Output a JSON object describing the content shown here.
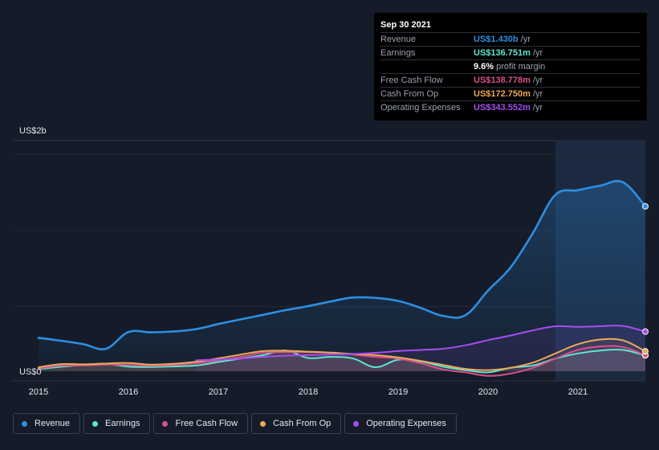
{
  "tooltip": {
    "date": "Sep 30 2021",
    "rows": [
      {
        "label": "Revenue",
        "value": "US$1.430b",
        "unit": "/yr",
        "color": "#2d8fe3"
      },
      {
        "label": "Earnings",
        "value": "US$136.751m",
        "unit": "/yr",
        "color": "#5ee6d2"
      },
      {
        "label": "",
        "value": "9.6%",
        "unit": "profit margin",
        "color": "#ffffff"
      },
      {
        "label": "Free Cash Flow",
        "value": "US$138.778m",
        "unit": "/yr",
        "color": "#d6508c"
      },
      {
        "label": "Cash From Op",
        "value": "US$172.750m",
        "unit": "/yr",
        "color": "#e9a95a"
      },
      {
        "label": "Operating Expenses",
        "value": "US$343.552m",
        "unit": "/yr",
        "color": "#a64df0"
      }
    ]
  },
  "legend": [
    {
      "label": "Revenue",
      "color": "#2d8fe3"
    },
    {
      "label": "Earnings",
      "color": "#5ee6d2"
    },
    {
      "label": "Free Cash Flow",
      "color": "#d6508c"
    },
    {
      "label": "Cash From Op",
      "color": "#e9a95a"
    },
    {
      "label": "Operating Expenses",
      "color": "#a64df0"
    }
  ],
  "chart_data": {
    "type": "area",
    "ylabel_top": "US$2b",
    "ylabel_bottom": "US$0",
    "ylim": [
      0,
      2000
    ],
    "xlim": [
      2015.0,
      2021.75
    ],
    "x_ticks": [
      "2015",
      "2016",
      "2017",
      "2018",
      "2019",
      "2020",
      "2021"
    ],
    "highlight_from": 2020.75,
    "series": [
      {
        "name": "Revenue",
        "color": "#2d8fe3",
        "points": [
          [
            2015.0,
            290
          ],
          [
            2015.25,
            265
          ],
          [
            2015.5,
            235
          ],
          [
            2015.75,
            195
          ],
          [
            2016.0,
            340
          ],
          [
            2016.25,
            337
          ],
          [
            2016.5,
            345
          ],
          [
            2016.75,
            365
          ],
          [
            2017.0,
            410
          ],
          [
            2017.25,
            450
          ],
          [
            2017.5,
            490
          ],
          [
            2017.75,
            530
          ],
          [
            2018.0,
            565
          ],
          [
            2018.25,
            605
          ],
          [
            2018.5,
            640
          ],
          [
            2018.75,
            636
          ],
          [
            2019.0,
            610
          ],
          [
            2019.25,
            550
          ],
          [
            2019.5,
            480
          ],
          [
            2019.75,
            487
          ],
          [
            2020.0,
            700
          ],
          [
            2020.25,
            900
          ],
          [
            2020.5,
            1200
          ],
          [
            2020.75,
            1530
          ],
          [
            2021.0,
            1570
          ],
          [
            2021.25,
            1610
          ],
          [
            2021.5,
            1640
          ],
          [
            2021.75,
            1430
          ]
        ]
      },
      {
        "name": "Earnings",
        "color": "#5ee6d2",
        "points": [
          [
            2015.0,
            20
          ],
          [
            2015.25,
            38
          ],
          [
            2015.5,
            55
          ],
          [
            2015.75,
            65
          ],
          [
            2016.0,
            40
          ],
          [
            2016.25,
            37
          ],
          [
            2016.5,
            42
          ],
          [
            2016.75,
            50
          ],
          [
            2017.0,
            80
          ],
          [
            2017.25,
            110
          ],
          [
            2017.5,
            140
          ],
          [
            2017.75,
            180
          ],
          [
            2018.0,
            115
          ],
          [
            2018.25,
            125
          ],
          [
            2018.5,
            110
          ],
          [
            2018.75,
            35
          ],
          [
            2019.0,
            100
          ],
          [
            2019.25,
            85
          ],
          [
            2019.5,
            40
          ],
          [
            2019.75,
            10
          ],
          [
            2020.0,
            -10
          ],
          [
            2020.25,
            30
          ],
          [
            2020.5,
            50
          ],
          [
            2020.75,
            110
          ],
          [
            2021.0,
            155
          ],
          [
            2021.25,
            180
          ],
          [
            2021.5,
            185
          ],
          [
            2021.75,
            137
          ]
        ]
      },
      {
        "name": "Free Cash Flow",
        "color": "#d6508c",
        "points": [
          [
            2015.0,
            25
          ],
          [
            2015.25,
            48
          ],
          [
            2015.5,
            50
          ],
          [
            2015.75,
            58
          ],
          [
            2016.0,
            55
          ],
          [
            2016.25,
            48
          ],
          [
            2016.5,
            55
          ],
          [
            2016.75,
            70
          ],
          [
            2017.0,
            95
          ],
          [
            2017.25,
            125
          ],
          [
            2017.5,
            160
          ],
          [
            2017.75,
            165
          ],
          [
            2018.0,
            165
          ],
          [
            2018.25,
            158
          ],
          [
            2018.5,
            145
          ],
          [
            2018.75,
            125
          ],
          [
            2019.0,
            110
          ],
          [
            2019.25,
            70
          ],
          [
            2019.5,
            15
          ],
          [
            2019.75,
            -10
          ],
          [
            2020.0,
            -40
          ],
          [
            2020.25,
            -20
          ],
          [
            2020.5,
            30
          ],
          [
            2020.75,
            110
          ],
          [
            2021.0,
            185
          ],
          [
            2021.25,
            215
          ],
          [
            2021.5,
            210
          ],
          [
            2021.75,
            139
          ]
        ]
      },
      {
        "name": "Cash From Op",
        "color": "#e9a95a",
        "points": [
          [
            2015.0,
            35
          ],
          [
            2015.25,
            62
          ],
          [
            2015.5,
            60
          ],
          [
            2015.75,
            67
          ],
          [
            2016.0,
            72
          ],
          [
            2016.25,
            58
          ],
          [
            2016.5,
            65
          ],
          [
            2016.75,
            82
          ],
          [
            2017.0,
            112
          ],
          [
            2017.25,
            145
          ],
          [
            2017.5,
            175
          ],
          [
            2017.75,
            178
          ],
          [
            2018.0,
            170
          ],
          [
            2018.25,
            162
          ],
          [
            2018.5,
            150
          ],
          [
            2018.75,
            140
          ],
          [
            2019.0,
            120
          ],
          [
            2019.25,
            90
          ],
          [
            2019.5,
            55
          ],
          [
            2019.75,
            20
          ],
          [
            2020.0,
            10
          ],
          [
            2020.25,
            30
          ],
          [
            2020.5,
            75
          ],
          [
            2020.75,
            155
          ],
          [
            2021.0,
            235
          ],
          [
            2021.25,
            275
          ],
          [
            2021.5,
            268
          ],
          [
            2021.75,
            173
          ]
        ]
      },
      {
        "name": "Operating Expenses",
        "color": "#a64df0",
        "points": [
          [
            2016.75,
            95
          ],
          [
            2017.0,
            102
          ],
          [
            2017.25,
            110
          ],
          [
            2017.5,
            125
          ],
          [
            2017.75,
            135
          ],
          [
            2018.0,
            140
          ],
          [
            2018.25,
            145
          ],
          [
            2018.5,
            150
          ],
          [
            2018.75,
            160
          ],
          [
            2019.0,
            175
          ],
          [
            2019.25,
            185
          ],
          [
            2019.5,
            195
          ],
          [
            2019.75,
            225
          ],
          [
            2020.0,
            270
          ],
          [
            2020.25,
            310
          ],
          [
            2020.5,
            355
          ],
          [
            2020.75,
            390
          ],
          [
            2021.0,
            385
          ],
          [
            2021.25,
            390
          ],
          [
            2021.5,
            393
          ],
          [
            2021.75,
            344
          ]
        ]
      }
    ]
  }
}
